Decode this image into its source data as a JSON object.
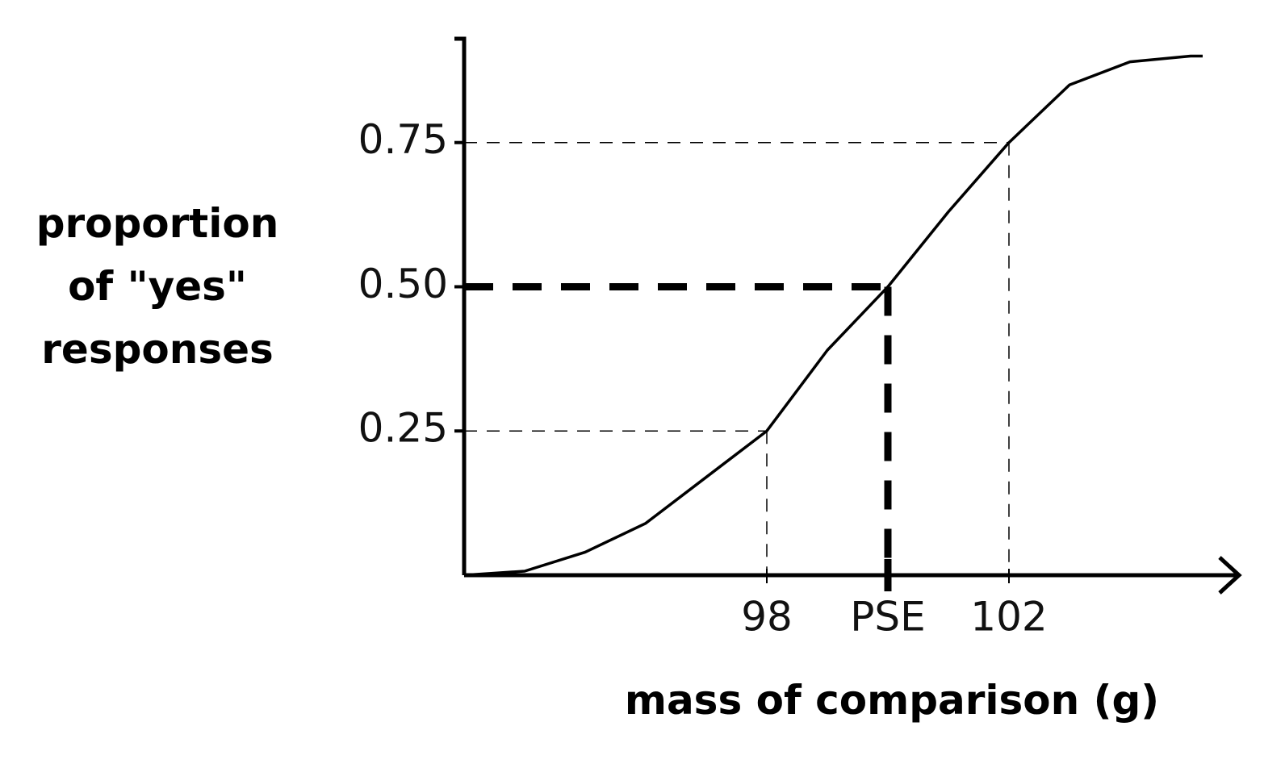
{
  "chart_data": {
    "type": "line",
    "xlabel": "mass of comparison (g)",
    "ylabel": "proportion of \"yes\" responses",
    "x": [
      93,
      94,
      95,
      96,
      97,
      98,
      99,
      100,
      101,
      102,
      103,
      104,
      105,
      105.2
    ],
    "series": [
      {
        "color": "#000000",
        "values": [
          0,
          0.007,
          0.04,
          0.09,
          0.17,
          0.25,
          0.39,
          0.5,
          0.63,
          0.75,
          0.85,
          0.89,
          0.9,
          0.9
        ]
      }
    ],
    "xlim": [
      93,
      105.8
    ],
    "ylim": [
      0,
      0.93
    ],
    "xticks": [
      98,
      {
        "value": 100,
        "label": "PSE"
      },
      102
    ],
    "yticks": [
      0.25,
      {
        "value": 0.5,
        "label": "0.50"
      },
      0.75
    ],
    "grid": false
  }
}
